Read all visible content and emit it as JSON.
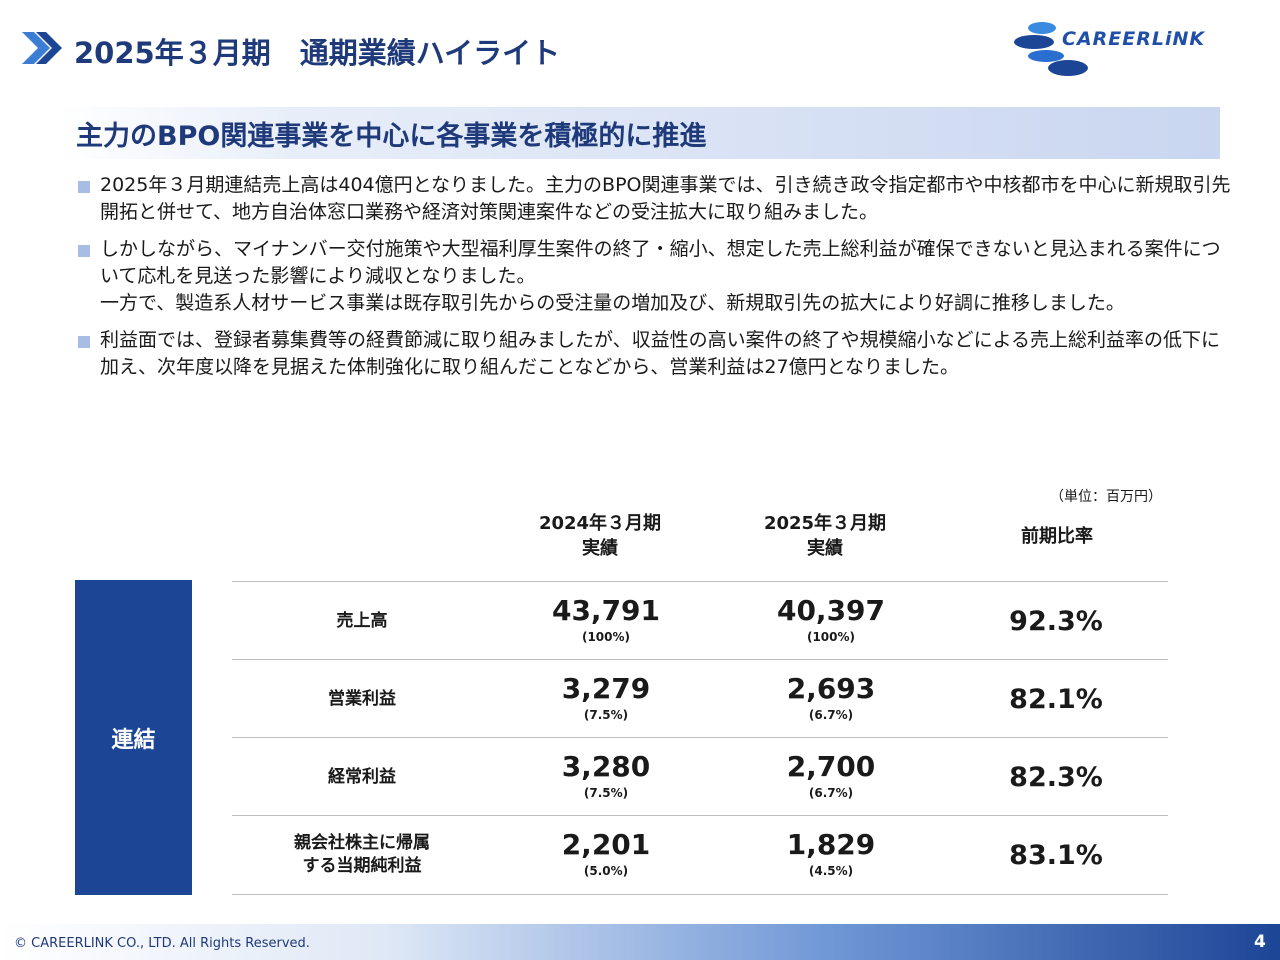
{
  "header": {
    "title": "2025年３月期　通期業績ハイライト",
    "logo": "CAREERLiNK"
  },
  "section": {
    "heading": "主力のBPO関連事業を中心に各事業を積極的に推進"
  },
  "bullets": [
    [
      "2025年３月期連結売上高は404億円となりました。主力のBPO関連事業では、引き続き政令指定都市や中核都市を中心に新規取引先開拓と併せて、地方自治体窓口業務や経済対策関連案件などの受注拡大に取り組みました。"
    ],
    [
      "しかしながら、マイナンバー交付施策や大型福利厚生案件の終了・縮小、想定した売上総利益が確保できないと見込まれる案件について応札を見送った影響により減収となりました。",
      "一方で、製造系人材サービス事業は既存取引先からの受注量の増加及び、新規取引先の拡大により好調に推移しました。"
    ],
    [
      "利益面では、登録者募集費等の経費節減に取り組みましたが、収益性の高い案件の終了や規模縮小などによる売上総利益率の低下に加え、次年度以降を見据えた体制強化に取り組んだことなどから、営業利益は27億円となりました。"
    ]
  ],
  "table": {
    "unit": "（単位：百万円）",
    "group": "連結",
    "columns": [
      [
        "2024年３月期",
        "実績"
      ],
      [
        "2025年３月期",
        "実績"
      ],
      [
        "前期比率"
      ]
    ],
    "rows": [
      {
        "label": [
          "売上高"
        ],
        "prev": "43,791",
        "prev_ratio": "(100%)",
        "curr": "40,397",
        "curr_ratio": "(100%)",
        "change": "92.3%"
      },
      {
        "label": [
          "営業利益"
        ],
        "prev": "3,279",
        "prev_ratio": "(7.5%)",
        "curr": "2,693",
        "curr_ratio": "(6.7%)",
        "change": "82.1%"
      },
      {
        "label": [
          "経常利益"
        ],
        "prev": "3,280",
        "prev_ratio": "(7.5%)",
        "curr": "2,700",
        "curr_ratio": "(6.7%)",
        "change": "82.3%"
      },
      {
        "label": [
          "親会社株主に帰属",
          "する当期純利益"
        ],
        "prev": "2,201",
        "prev_ratio": "(5.0%)",
        "curr": "1,829",
        "curr_ratio": "(4.5%)",
        "change": "83.1%"
      }
    ]
  },
  "footer": {
    "copyright": "© CAREERLINK CO., LTD. All Rights Reserved.",
    "page": "4"
  }
}
